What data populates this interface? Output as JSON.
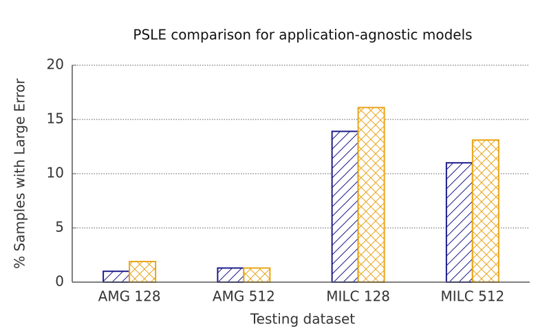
{
  "chart_data": {
    "type": "bar",
    "title": "PSLE comparison for application-agnostic models",
    "x_label": "Testing dataset",
    "y_label": "% Samples with Large Error",
    "categories": [
      "AMG 128",
      "AMG 512",
      "MILC 128",
      "MILC 512"
    ],
    "series": [
      {
        "color": "#1c1c8a",
        "values": [
          1.0,
          1.3,
          13.9,
          11.0
        ]
      },
      {
        "color": "#e9a51a",
        "values": [
          1.9,
          1.3,
          16.1,
          13.1
        ]
      }
    ],
    "ylim": [
      0,
      20
    ],
    "yticks": [
      0,
      5,
      10,
      15,
      20
    ],
    "grid": true
  }
}
